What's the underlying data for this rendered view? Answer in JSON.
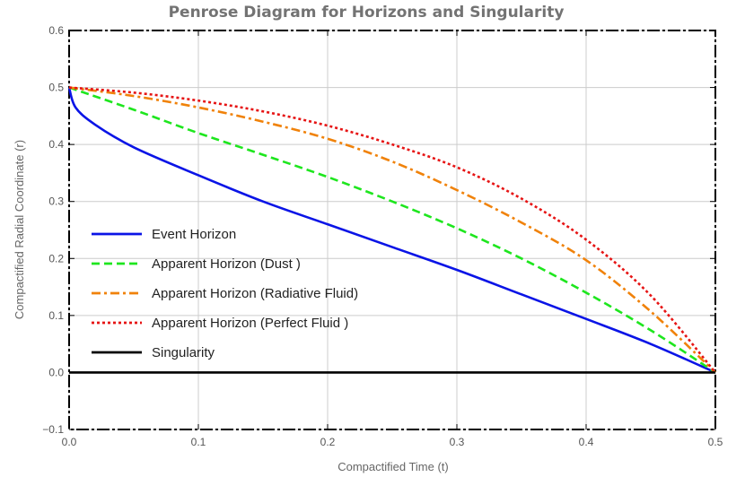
{
  "chart_data": {
    "type": "line",
    "title": "Penrose  Diagram for  Horizons  and Singularity",
    "xlabel": "Compactified   Time  (t)",
    "ylabel": "Compactified   Radial  Coordinate  (r)",
    "xlim": [
      0.0,
      0.5
    ],
    "ylim": [
      -0.1,
      0.6
    ],
    "x_ticks": [
      0.0,
      0.1,
      0.2,
      0.3,
      0.4,
      0.5
    ],
    "y_ticks": [
      -0.1,
      0.0,
      0.1,
      0.2,
      0.3,
      0.4,
      0.5,
      0.6
    ],
    "x_tick_labels": [
      "0.0",
      "0.1",
      "0.2",
      "0.3",
      "0.4",
      "0.5"
    ],
    "y_tick_labels": [
      "−0.1",
      "0.0",
      "0.1",
      "0.2",
      "0.3",
      "0.4",
      "0.5",
      "0.6"
    ],
    "grid": true,
    "legend_position": "left",
    "series": [
      {
        "name": "Event Horizon",
        "color": "#0a14e6",
        "style": "solid",
        "x": [
          0.0,
          0.005,
          0.02,
          0.05,
          0.1,
          0.15,
          0.2,
          0.25,
          0.3,
          0.35,
          0.4,
          0.45,
          0.5
        ],
        "y": [
          0.5,
          0.465,
          0.435,
          0.395,
          0.346,
          0.3,
          0.26,
          0.22,
          0.18,
          0.137,
          0.094,
          0.05,
          0.0
        ]
      },
      {
        "name": "Apparent Horizon (Dust )",
        "color": "#1ee61e",
        "style": "dashed",
        "x": [
          0.0,
          0.05,
          0.1,
          0.15,
          0.2,
          0.25,
          0.3,
          0.35,
          0.4,
          0.45,
          0.5
        ],
        "y": [
          0.5,
          0.461,
          0.42,
          0.382,
          0.343,
          0.3,
          0.253,
          0.2,
          0.14,
          0.074,
          0.0
        ]
      },
      {
        "name": "Apparent Horizon  (Radiative Fluid)",
        "color": "#f0820a",
        "style": "dashdot",
        "x": [
          0.0,
          0.05,
          0.1,
          0.15,
          0.2,
          0.25,
          0.3,
          0.35,
          0.4,
          0.45,
          0.5
        ],
        "y": [
          0.5,
          0.485,
          0.465,
          0.44,
          0.41,
          0.37,
          0.32,
          0.263,
          0.197,
          0.107,
          0.0
        ]
      },
      {
        "name": "Apparent Horizon  (Perfect Fluid )",
        "color": "#e61414",
        "style": "dotted",
        "x": [
          0.0,
          0.05,
          0.1,
          0.15,
          0.2,
          0.25,
          0.3,
          0.35,
          0.4,
          0.45,
          0.5
        ],
        "y": [
          0.5,
          0.491,
          0.477,
          0.458,
          0.433,
          0.4,
          0.36,
          0.305,
          0.233,
          0.135,
          0.0
        ]
      },
      {
        "name": "Singularity",
        "color": "#000000",
        "style": "solid",
        "x": [
          0.0,
          0.5
        ],
        "y": [
          0.0,
          0.0
        ]
      }
    ]
  }
}
